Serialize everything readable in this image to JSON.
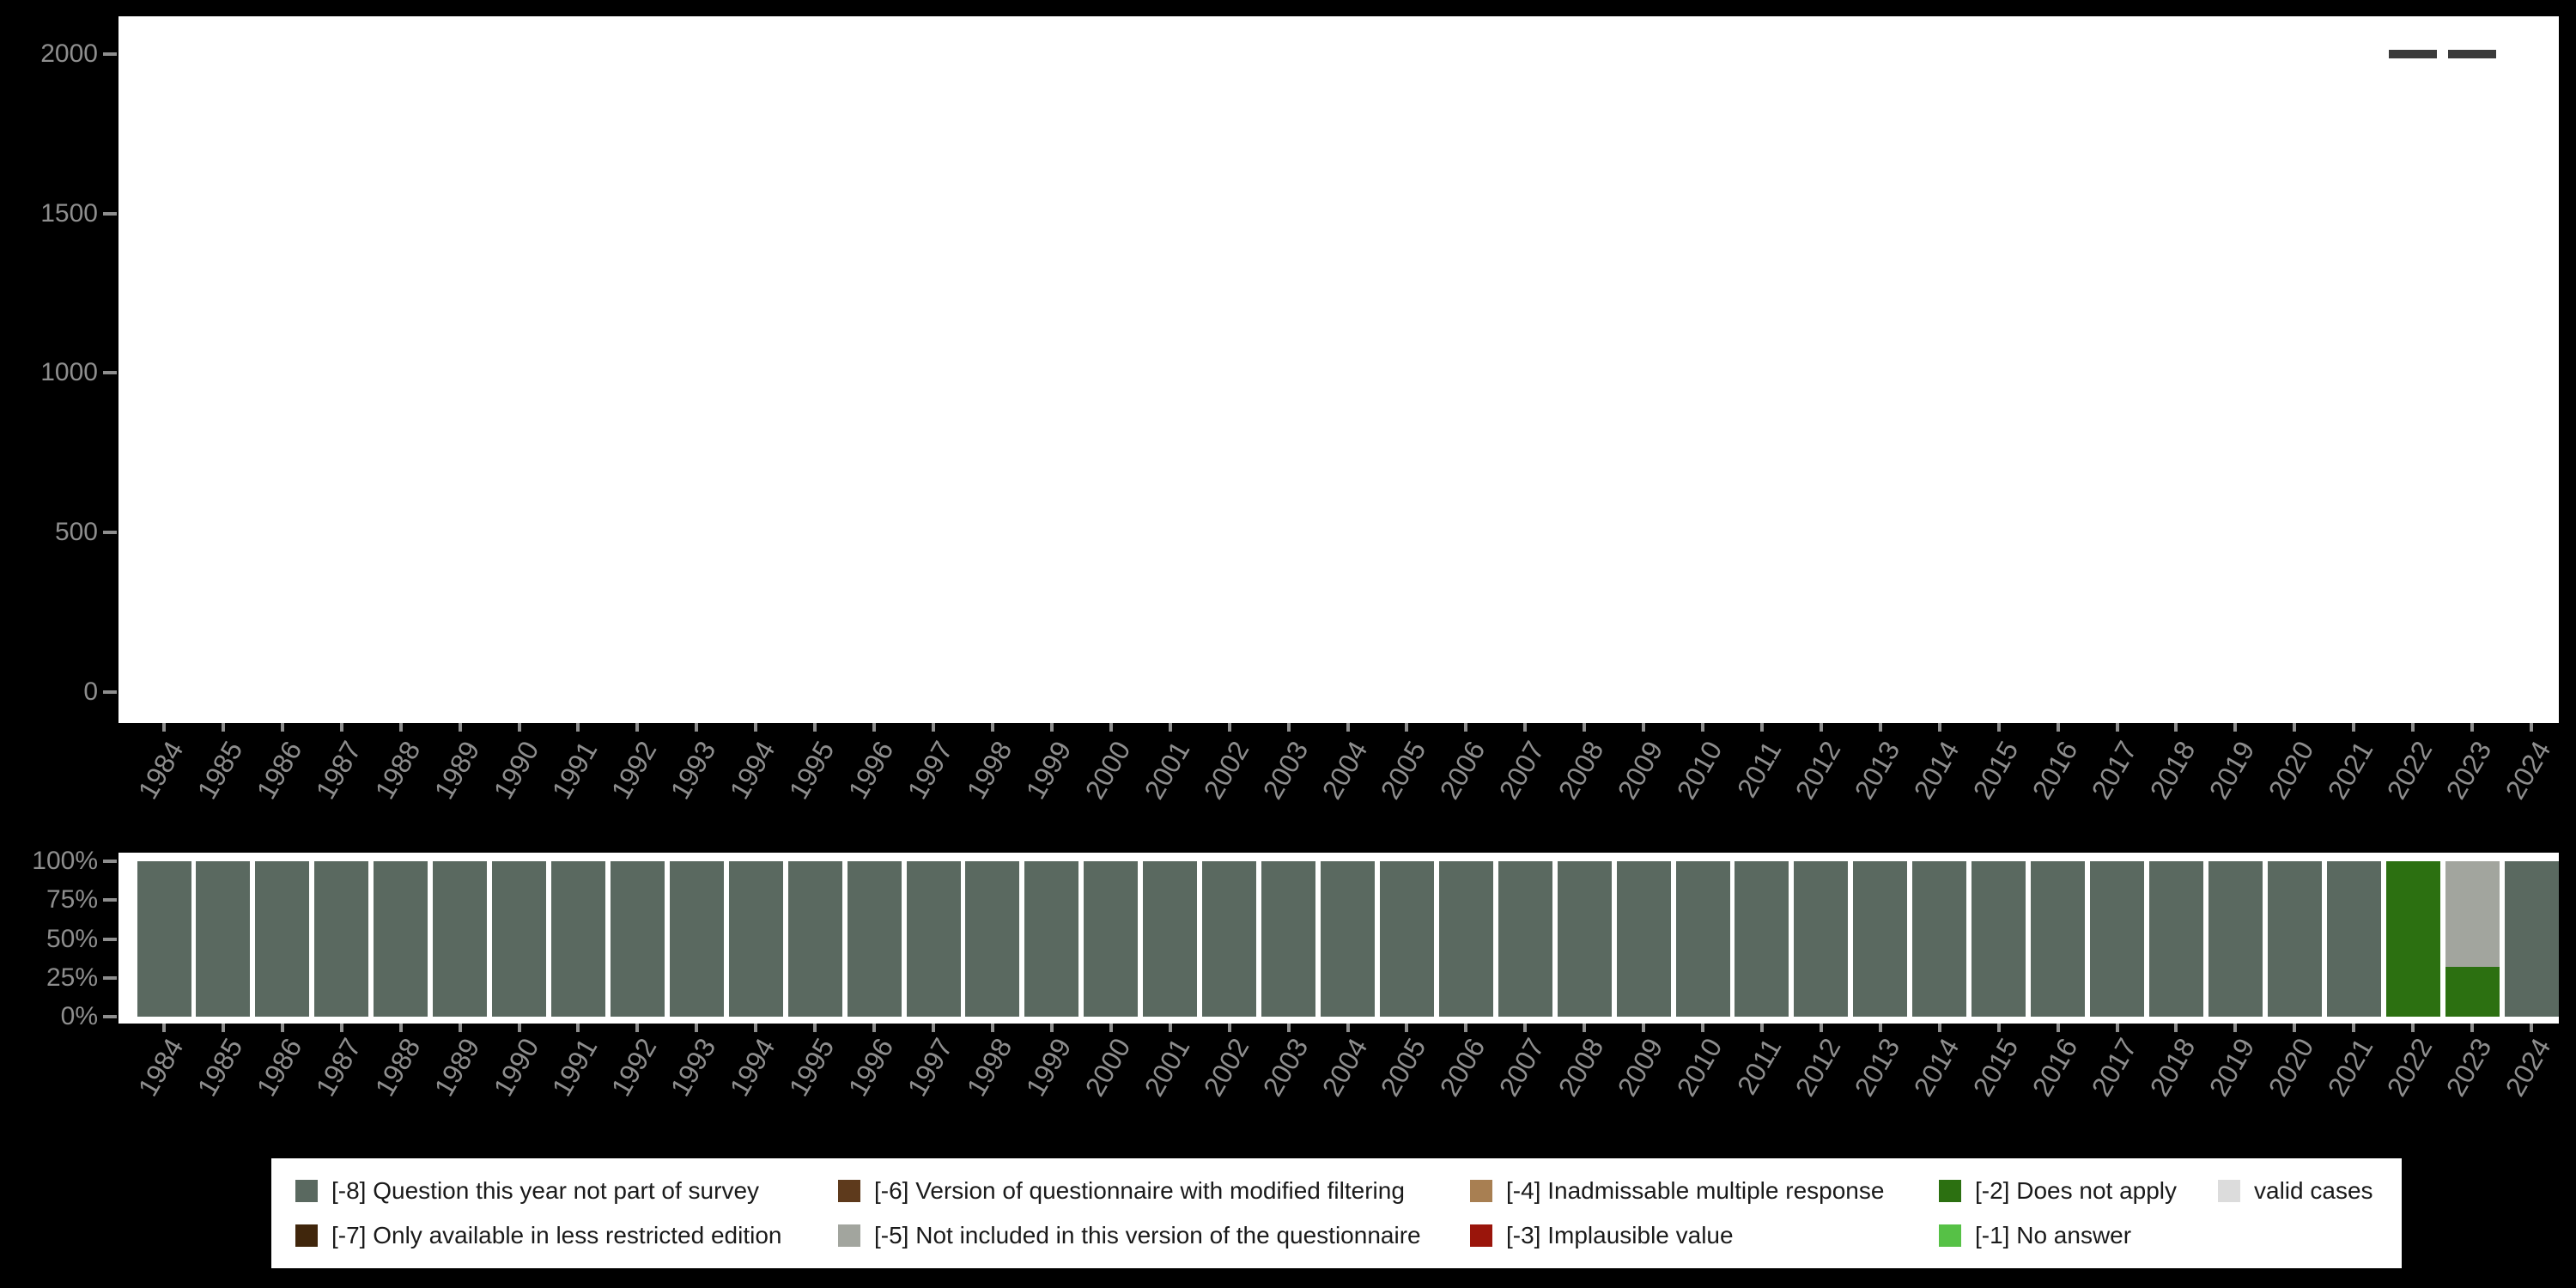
{
  "colors": {
    "background": "#000000",
    "panel": "#ffffff",
    "axis_text": "#8e8e8e",
    "legend_text": "#1a1a1a",
    "marker": "#3b3b3b",
    "codes": {
      "-8": "#5a6960",
      "-7": "#40260c",
      "-6": "#5e3a1c",
      "-5": "#a2a59e",
      "-4": "#a87f52",
      "-3": "#9a150b",
      "-2": "#2c7011",
      "-1": "#56c146",
      "valid": "#dcdcdc"
    }
  },
  "chart_data": [
    {
      "type": "bar",
      "subtype": "count-dash-markers",
      "title": "",
      "xlabel": "",
      "ylabel": "",
      "ylim": [
        0,
        2000
      ],
      "grid": false,
      "ytick_values": [
        0,
        500,
        1000,
        1500,
        2000
      ],
      "ytick_labels": [
        "0",
        "500",
        "1000",
        "1500",
        "2000"
      ],
      "categories": [
        "1984",
        "1985",
        "1986",
        "1987",
        "1988",
        "1989",
        "1990",
        "1991",
        "1992",
        "1993",
        "1994",
        "1995",
        "1996",
        "1997",
        "1998",
        "1999",
        "2000",
        "2001",
        "2002",
        "2003",
        "2004",
        "2005",
        "2006",
        "2007",
        "2008",
        "2009",
        "2010",
        "2011",
        "2012",
        "2013",
        "2014",
        "2015",
        "2016",
        "2017",
        "2018",
        "2019",
        "2020",
        "2021",
        "2022",
        "2023",
        "2024"
      ],
      "markers": [
        {
          "category": "2022",
          "value": 2000
        },
        {
          "category": "2023",
          "value": 2000
        }
      ]
    },
    {
      "type": "bar",
      "subtype": "stacked-percent",
      "title": "",
      "xlabel": "",
      "ylabel": "",
      "ylim": [
        0,
        100
      ],
      "grid": false,
      "ytick_values": [
        0,
        25,
        50,
        75,
        100
      ],
      "ytick_labels": [
        "0%",
        "25%",
        "50%",
        "75%",
        "100%"
      ],
      "categories": [
        "1984",
        "1985",
        "1986",
        "1987",
        "1988",
        "1989",
        "1990",
        "1991",
        "1992",
        "1993",
        "1994",
        "1995",
        "1996",
        "1997",
        "1998",
        "1999",
        "2000",
        "2001",
        "2002",
        "2003",
        "2004",
        "2005",
        "2006",
        "2007",
        "2008",
        "2009",
        "2010",
        "2011",
        "2012",
        "2013",
        "2014",
        "2015",
        "2016",
        "2017",
        "2018",
        "2019",
        "2020",
        "2021",
        "2022",
        "2023",
        "2024"
      ],
      "segments_by_year": [
        [
          [
            "-8",
            100
          ]
        ],
        [
          [
            "-8",
            100
          ]
        ],
        [
          [
            "-8",
            100
          ]
        ],
        [
          [
            "-8",
            100
          ]
        ],
        [
          [
            "-8",
            100
          ]
        ],
        [
          [
            "-8",
            100
          ]
        ],
        [
          [
            "-8",
            100
          ]
        ],
        [
          [
            "-8",
            100
          ]
        ],
        [
          [
            "-8",
            100
          ]
        ],
        [
          [
            "-8",
            100
          ]
        ],
        [
          [
            "-8",
            100
          ]
        ],
        [
          [
            "-8",
            100
          ]
        ],
        [
          [
            "-8",
            100
          ]
        ],
        [
          [
            "-8",
            100
          ]
        ],
        [
          [
            "-8",
            100
          ]
        ],
        [
          [
            "-8",
            100
          ]
        ],
        [
          [
            "-8",
            100
          ]
        ],
        [
          [
            "-8",
            100
          ]
        ],
        [
          [
            "-8",
            100
          ]
        ],
        [
          [
            "-8",
            100
          ]
        ],
        [
          [
            "-8",
            100
          ]
        ],
        [
          [
            "-8",
            100
          ]
        ],
        [
          [
            "-8",
            100
          ]
        ],
        [
          [
            "-8",
            100
          ]
        ],
        [
          [
            "-8",
            100
          ]
        ],
        [
          [
            "-8",
            100
          ]
        ],
        [
          [
            "-8",
            100
          ]
        ],
        [
          [
            "-8",
            100
          ]
        ],
        [
          [
            "-8",
            100
          ]
        ],
        [
          [
            "-8",
            100
          ]
        ],
        [
          [
            "-8",
            100
          ]
        ],
        [
          [
            "-8",
            100
          ]
        ],
        [
          [
            "-8",
            100
          ]
        ],
        [
          [
            "-8",
            100
          ]
        ],
        [
          [
            "-8",
            100
          ]
        ],
        [
          [
            "-8",
            100
          ]
        ],
        [
          [
            "-8",
            100
          ]
        ],
        [
          [
            "-8",
            100
          ]
        ],
        [
          [
            "-2",
            100
          ]
        ],
        [
          [
            "-2",
            32
          ],
          [
            "-5",
            68
          ]
        ],
        [
          [
            "-8",
            100
          ]
        ]
      ]
    }
  ],
  "legend": {
    "rows": [
      [
        {
          "code": "-8",
          "label": "[-8] Question this year not part of survey"
        },
        {
          "code": "-6",
          "label": "[-6] Version of questionnaire with modified filtering"
        },
        {
          "code": "-4",
          "label": "[-4] Inadmissable multiple response"
        },
        {
          "code": "-2",
          "label": "[-2] Does not apply"
        },
        {
          "code": "valid",
          "label": "valid cases"
        }
      ],
      [
        {
          "code": "-7",
          "label": "[-7] Only available in less restricted edition"
        },
        {
          "code": "-5",
          "label": "[-5] Not included in this version of the questionnaire"
        },
        {
          "code": "-3",
          "label": "[-3] Implausible value"
        },
        {
          "code": "-1",
          "label": "[-1] No answer"
        }
      ]
    ]
  }
}
